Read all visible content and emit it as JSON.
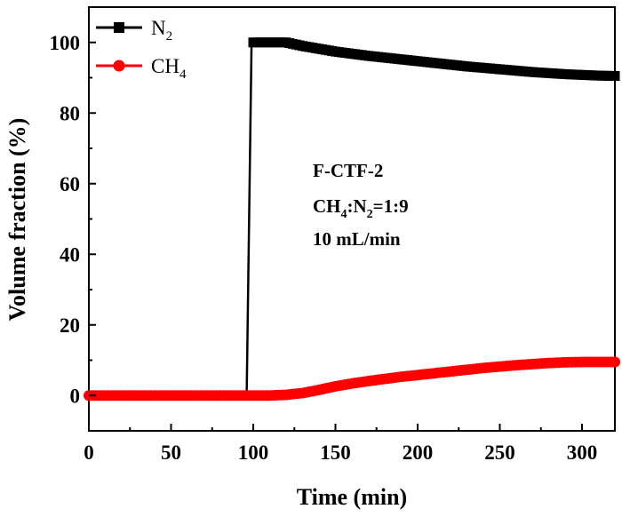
{
  "chart_data": {
    "type": "line",
    "xlabel": "Time (min)",
    "ylabel": "Volume fraction (%)",
    "xlim": [
      0,
      320
    ],
    "ylim": [
      -10,
      110
    ],
    "x_ticks": [
      "0",
      "50",
      "100",
      "150",
      "200",
      "250",
      "300"
    ],
    "y_ticks": [
      "0",
      "20",
      "40",
      "60",
      "80",
      "100"
    ],
    "grid": false,
    "legend_position": "top-left",
    "annotations": [
      "F-CTF-2",
      "CH4:N2=1:9",
      "10 mL/min"
    ],
    "series": [
      {
        "name": "N2",
        "color": "#000000",
        "marker": "square",
        "points": [
          [
            0,
            0
          ],
          [
            40,
            0
          ],
          [
            80,
            0
          ],
          [
            96,
            0
          ],
          [
            99,
            100
          ],
          [
            110,
            100
          ],
          [
            120,
            100
          ],
          [
            130,
            99
          ],
          [
            140,
            98.2
          ],
          [
            150,
            97.4
          ],
          [
            160,
            96.8
          ],
          [
            170,
            96.2
          ],
          [
            180,
            95.7
          ],
          [
            190,
            95.2
          ],
          [
            200,
            94.7
          ],
          [
            210,
            94.2
          ],
          [
            220,
            93.7
          ],
          [
            230,
            93.2
          ],
          [
            240,
            92.8
          ],
          [
            250,
            92.4
          ],
          [
            260,
            92
          ],
          [
            270,
            91.6
          ],
          [
            280,
            91.3
          ],
          [
            290,
            91
          ],
          [
            300,
            90.8
          ],
          [
            310,
            90.6
          ],
          [
            320,
            90.5
          ]
        ]
      },
      {
        "name": "CH4",
        "color": "#ff0000",
        "marker": "circle",
        "points": [
          [
            0,
            0
          ],
          [
            20,
            0
          ],
          [
            40,
            0
          ],
          [
            60,
            0
          ],
          [
            80,
            0
          ],
          [
            100,
            0
          ],
          [
            110,
            0
          ],
          [
            120,
            0.2
          ],
          [
            130,
            0.7
          ],
          [
            140,
            1.6
          ],
          [
            150,
            2.6
          ],
          [
            160,
            3.4
          ],
          [
            170,
            4.1
          ],
          [
            180,
            4.7
          ],
          [
            190,
            5.3
          ],
          [
            200,
            5.8
          ],
          [
            210,
            6.3
          ],
          [
            220,
            6.8
          ],
          [
            230,
            7.3
          ],
          [
            240,
            7.8
          ],
          [
            250,
            8.2
          ],
          [
            260,
            8.6
          ],
          [
            270,
            8.9
          ],
          [
            280,
            9.2
          ],
          [
            290,
            9.4
          ],
          [
            300,
            9.5
          ],
          [
            310,
            9.5
          ],
          [
            320,
            9.5
          ]
        ]
      }
    ]
  }
}
